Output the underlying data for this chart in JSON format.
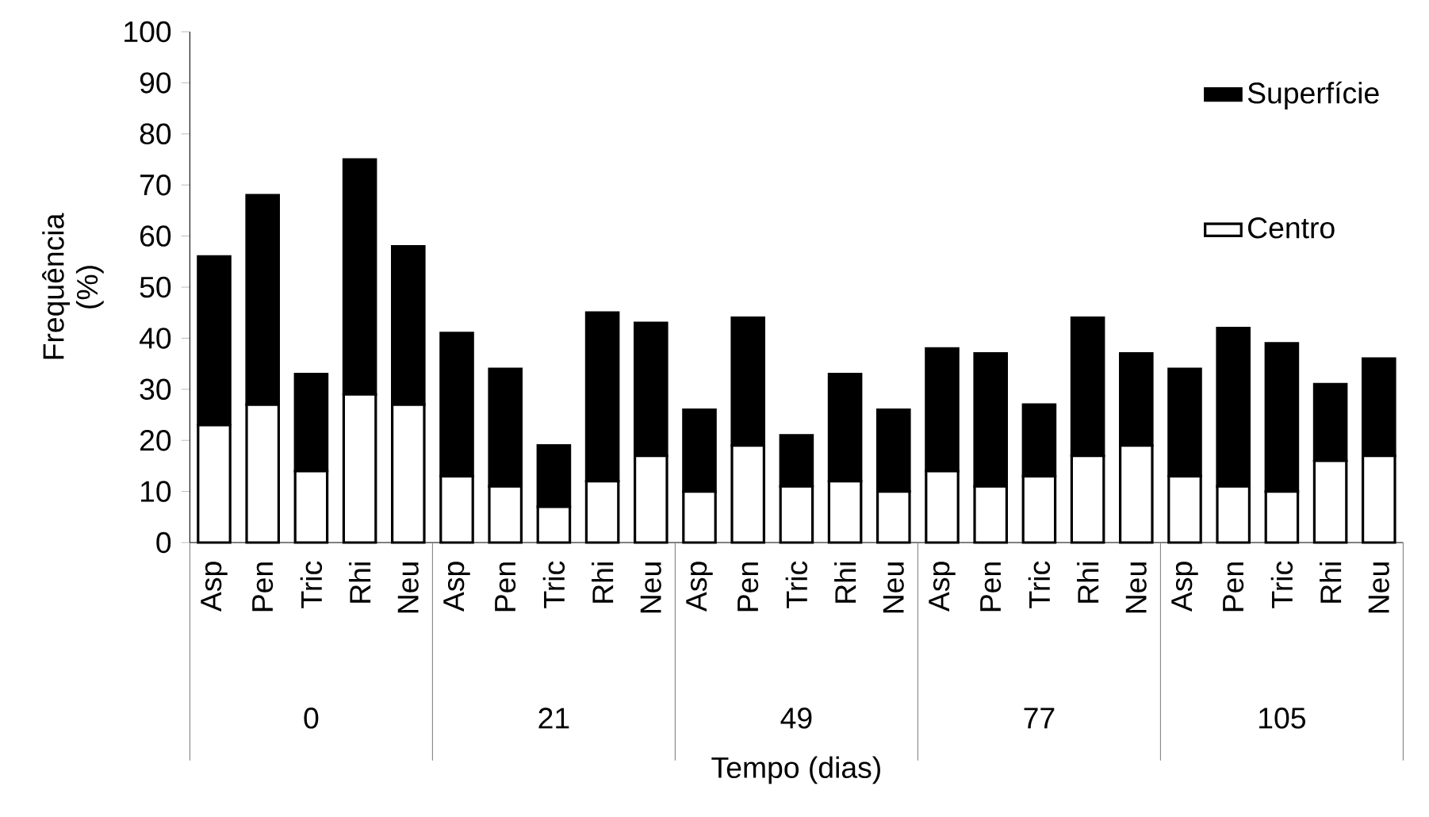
{
  "chart_data": {
    "type": "bar",
    "stacked": true,
    "categories": [
      "Asp",
      "Pen",
      "Tric",
      "Rhi",
      "Neu",
      "Asp",
      "Pen",
      "Tric",
      "Rhi",
      "Neu",
      "Asp",
      "Pen",
      "Tric",
      "Rhi",
      "Neu",
      "Asp",
      "Pen",
      "Tric",
      "Rhi",
      "Neu",
      "Asp",
      "Pen",
      "Tric",
      "Rhi",
      "Neu"
    ],
    "series": [
      {
        "name": "Centro",
        "color": "#ffffff",
        "values": [
          23,
          27,
          14,
          29,
          27,
          13,
          11,
          7,
          12,
          17,
          10,
          19,
          11,
          12,
          10,
          14,
          11,
          13,
          17,
          19,
          13,
          11,
          10,
          16,
          17
        ]
      },
      {
        "name": "Superfície",
        "color": "#000000",
        "values": [
          33,
          41,
          19,
          46,
          31,
          28,
          23,
          12,
          33,
          26,
          16,
          25,
          10,
          21,
          16,
          24,
          26,
          14,
          27,
          18,
          21,
          31,
          29,
          15,
          19
        ]
      }
    ],
    "ylim": [
      0,
      100
    ],
    "yticks": [
      0,
      10,
      20,
      30,
      40,
      50,
      60,
      70,
      80,
      90,
      100
    ],
    "xlabel": "Tempo (dias)",
    "ylabel": "Frequência (%)",
    "annotations": [
      "0",
      "21",
      "49",
      "77",
      "105"
    ],
    "legend": "top right"
  }
}
